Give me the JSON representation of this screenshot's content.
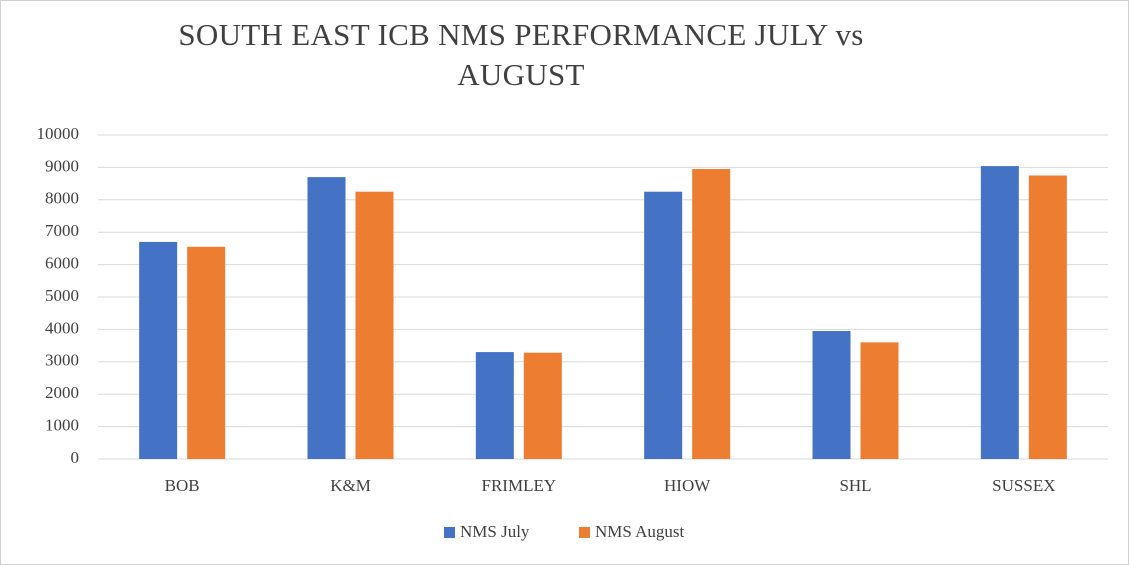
{
  "chart_data": {
    "type": "bar",
    "title": "SOUTH EAST ICB NMS PERFORMANCE JULY vs AUGUST",
    "categories": [
      "BOB",
      "K&M",
      "FRIMLEY",
      "HIOW",
      "SHL",
      "SUSSEX"
    ],
    "series": [
      {
        "name": "NMS July",
        "color": "#4472c4",
        "values": [
          6700,
          8700,
          3300,
          8250,
          3950,
          9040
        ]
      },
      {
        "name": "NMS August",
        "color": "#ed7d31",
        "values": [
          6550,
          8250,
          3280,
          8950,
          3600,
          8750
        ]
      }
    ],
    "ylim": [
      0,
      10000
    ],
    "yticks": [
      0,
      1000,
      2000,
      3000,
      4000,
      5000,
      6000,
      7000,
      8000,
      9000,
      10000
    ],
    "grid": true,
    "legend": "bottom"
  }
}
